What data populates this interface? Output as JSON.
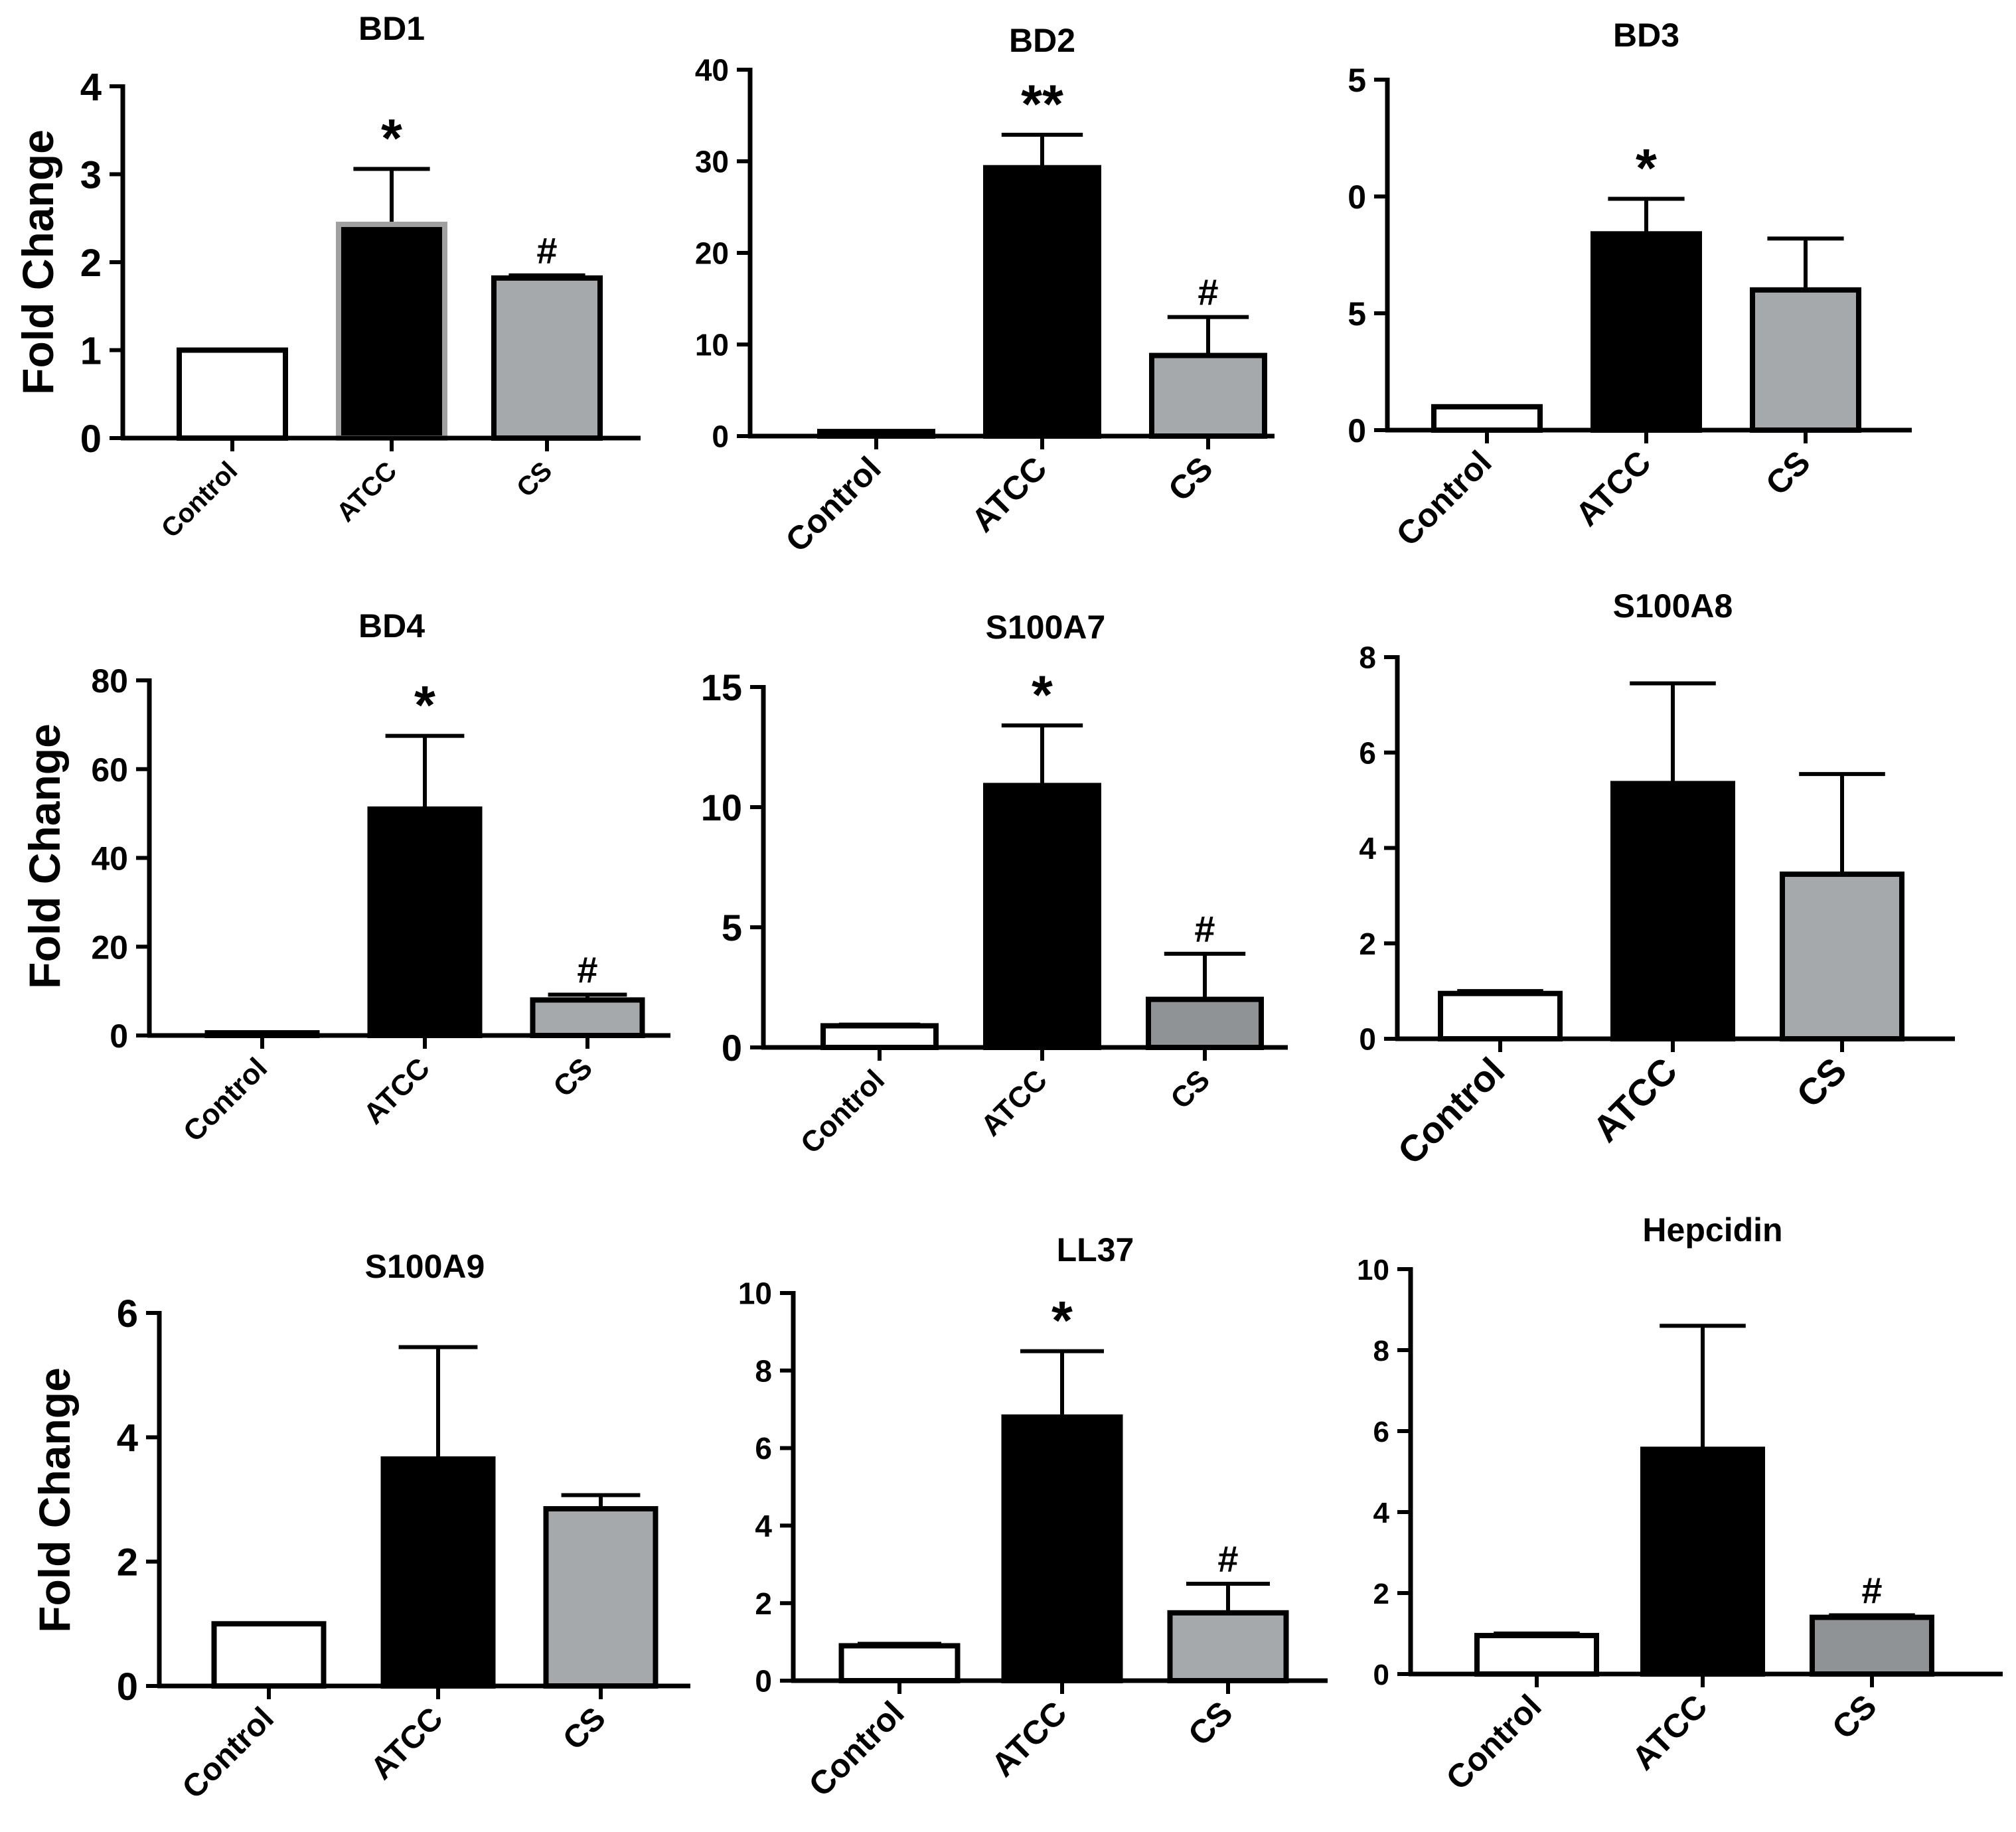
{
  "figure": {
    "categories": [
      "Control",
      "ATCC",
      "CS"
    ],
    "colors": {
      "Control": "#ffffff",
      "ATCC": "#000000",
      "CS": "#a6a9ab"
    }
  },
  "chart_data": [
    {
      "type": "bar",
      "title": "BD1",
      "ylabel": "Fold Change",
      "categories": [
        "Control",
        "ATCC",
        "CS"
      ],
      "values": [
        1.0,
        2.43,
        1.82
      ],
      "errors": [
        0,
        0.63,
        0.03
      ],
      "ylim": [
        0,
        4
      ],
      "tick_labels": [
        "0",
        "1",
        "2",
        "3",
        "4"
      ],
      "significance": [
        "",
        "*",
        "#"
      ]
    },
    {
      "type": "bar",
      "title": "BD2",
      "ylabel": "",
      "categories": [
        "Control",
        "ATCC",
        "CS"
      ],
      "values": [
        0.5,
        29.3,
        8.8
      ],
      "errors": [
        0,
        3.6,
        4.2
      ],
      "ylim": [
        0,
        40
      ],
      "tick_labels": [
        "0",
        "10",
        "20",
        "30",
        "40"
      ],
      "significance": [
        "",
        "**",
        "#"
      ]
    },
    {
      "type": "bar",
      "title": "BD3",
      "ylabel": "",
      "categories": [
        "Control",
        "ATCC",
        "CS"
      ],
      "values": [
        1.0,
        8.4,
        6.0
      ],
      "errors": [
        0,
        1.5,
        2.2
      ],
      "ylim": [
        0,
        15
      ],
      "tick_labels": [
        "0",
        "5",
        "0",
        "5"
      ],
      "significance": [
        "",
        "*",
        ""
      ]
    },
    {
      "type": "bar",
      "title": "BD4",
      "ylabel": "Fold Change",
      "categories": [
        "Control",
        "ATCC",
        "CS"
      ],
      "values": [
        0.5,
        51.0,
        8.0
      ],
      "errors": [
        0,
        16.5,
        1.2
      ],
      "ylim": [
        0,
        80
      ],
      "tick_labels": [
        "0",
        "20",
        "40",
        "60",
        "80"
      ],
      "significance": [
        "",
        "*",
        "#"
      ]
    },
    {
      "type": "bar",
      "title": "S100A7",
      "ylabel": "",
      "categories": [
        "Control",
        "ATCC",
        "CS"
      ],
      "values": [
        0.9,
        10.9,
        2.0
      ],
      "errors": [
        0.05,
        2.5,
        1.9
      ],
      "ylim": [
        0,
        15
      ],
      "tick_labels": [
        "0",
        "5",
        "10",
        "15"
      ],
      "significance": [
        "",
        "*",
        "#"
      ]
    },
    {
      "type": "bar",
      "title": "S100A8",
      "ylabel": "",
      "categories": [
        "Control",
        "ATCC",
        "CS"
      ],
      "values": [
        0.95,
        5.35,
        3.45
      ],
      "errors": [
        0.05,
        2.1,
        2.1
      ],
      "ylim": [
        0,
        8
      ],
      "tick_labels": [
        "0",
        "2",
        "4",
        "6",
        "8"
      ],
      "significance": [
        "",
        "",
        ""
      ]
    },
    {
      "type": "bar",
      "title": "S100A9",
      "ylabel": "Fold Change",
      "categories": [
        "Control",
        "ATCC",
        "CS"
      ],
      "values": [
        1.0,
        3.65,
        2.85
      ],
      "errors": [
        0,
        1.8,
        0.22
      ],
      "ylim": [
        0,
        6
      ],
      "tick_labels": [
        "0",
        "2",
        "4",
        "6"
      ],
      "significance": [
        "",
        "",
        ""
      ]
    },
    {
      "type": "bar",
      "title": "LL37",
      "ylabel": "",
      "categories": [
        "Control",
        "ATCC",
        "CS"
      ],
      "values": [
        0.9,
        6.8,
        1.75
      ],
      "errors": [
        0.05,
        1.7,
        0.75
      ],
      "ylim": [
        0,
        10
      ],
      "tick_labels": [
        "0",
        "2",
        "4",
        "6",
        "8",
        "10"
      ],
      "significance": [
        "",
        "*",
        "#"
      ]
    },
    {
      "type": "bar",
      "title": "Hepcidin",
      "ylabel": "",
      "categories": [
        "Control",
        "ATCC",
        "CS"
      ],
      "values": [
        0.95,
        5.55,
        1.4
      ],
      "errors": [
        0.05,
        3.05,
        0.05
      ],
      "ylim": [
        0,
        10
      ],
      "tick_labels": [
        "0",
        "2",
        "4",
        "6",
        "8",
        "10"
      ],
      "significance": [
        "",
        "",
        "#"
      ]
    }
  ]
}
